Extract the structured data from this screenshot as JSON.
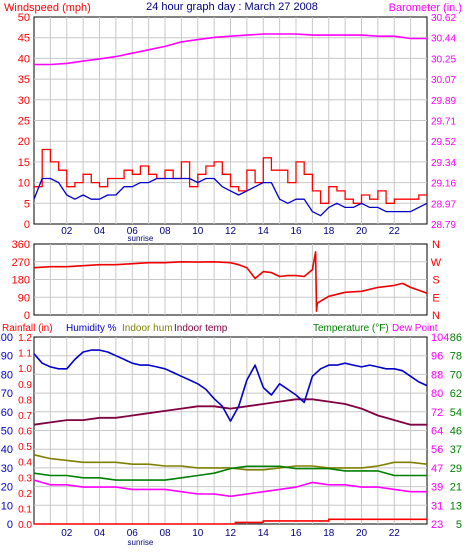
{
  "title": "24 hour graph day : March 27 2008",
  "panel1": {
    "left_label": "Windspeed (mph)",
    "right_label": "Barometer (in.)"
  },
  "panel2": {
    "compass_labels": [
      "N",
      "W",
      "S",
      "E",
      "N"
    ]
  },
  "panel3": {
    "labels": [
      "Rainfall (in)",
      "Humidity %",
      "Indoor hum",
      "Indoor temp",
      "Temperature (°F)",
      "Dew Point"
    ]
  },
  "x_ticks": [
    "02",
    "04",
    "06",
    "08",
    "10",
    "12",
    "14",
    "16",
    "18",
    "20",
    "22"
  ],
  "sunrise_label": "sunrise",
  "colors": {
    "wind": "#ff0000",
    "wind_avg": "#0000cc",
    "baro": "#ff00ff",
    "dir": "#ee0000",
    "humidity": "#0000cc",
    "indoor_hum": "#808000",
    "indoor_temp": "#800040",
    "temperature": "#008000",
    "dewpoint": "#ff00ff",
    "rain": "#ff0000",
    "grid": "#c8c8c8"
  },
  "chart_data": [
    {
      "type": "line",
      "x_unit": "hour",
      "xlim": [
        0,
        24
      ],
      "y_left": {
        "label": "Windspeed (mph)",
        "ticks": [
          0,
          5,
          10,
          15,
          20,
          25,
          30,
          35,
          40,
          45,
          50
        ],
        "ylim": [
          0,
          50
        ]
      },
      "y_right": {
        "label": "Barometer (in.)",
        "ticks": [
          "28.79",
          "28.97",
          "29.16",
          "29.34",
          "29.52",
          "29.71",
          "29.89",
          "30.07",
          "30.25",
          "30.44",
          "30.62"
        ],
        "ylim": [
          28.79,
          30.62
        ]
      },
      "series": [
        {
          "name": "Windspeed (mph)",
          "axis": "left",
          "style": "gust",
          "x": [
            0,
            0.5,
            1,
            1.5,
            2,
            2.5,
            3,
            3.5,
            4,
            4.5,
            5,
            5.5,
            6,
            6.5,
            7,
            7.5,
            8,
            8.5,
            9,
            9.5,
            10,
            10.5,
            11,
            11.5,
            12,
            12.5,
            13,
            13.5,
            14,
            14.5,
            15,
            15.5,
            16,
            16.5,
            17,
            17.5,
            18,
            18.5,
            19,
            19.5,
            20,
            20.5,
            21,
            21.5,
            22,
            22.5,
            23,
            23.5,
            24
          ],
          "y": [
            9,
            18,
            15,
            13,
            9,
            10,
            12,
            10,
            9,
            11,
            11,
            13,
            12,
            14,
            12,
            11,
            13,
            11,
            15,
            9,
            12,
            14,
            15,
            12,
            9,
            8,
            13,
            10,
            16,
            13,
            13,
            10,
            15,
            12,
            8,
            5,
            9,
            8,
            6,
            5,
            7,
            6,
            8,
            5,
            6,
            6,
            6,
            7,
            7
          ]
        },
        {
          "name": "Windspeed (avg)",
          "axis": "left",
          "style": "avg",
          "x": [
            0,
            0.5,
            1,
            1.5,
            2,
            2.5,
            3,
            3.5,
            4,
            4.5,
            5,
            5.5,
            6,
            6.5,
            7,
            7.5,
            8,
            8.5,
            9,
            9.5,
            10,
            10.5,
            11,
            11.5,
            12,
            12.5,
            13,
            13.5,
            14,
            14.5,
            15,
            15.5,
            16,
            16.5,
            17,
            17.5,
            18,
            18.5,
            19,
            19.5,
            20,
            20.5,
            21,
            21.5,
            22,
            22.5,
            23,
            23.5,
            24
          ],
          "y": [
            6,
            11,
            11,
            10,
            7,
            6,
            7,
            6,
            6,
            7,
            7,
            9,
            9,
            10,
            10,
            11,
            11,
            11,
            11,
            11,
            10,
            11,
            11,
            9,
            8,
            7,
            8,
            9,
            10,
            10,
            6,
            5,
            6,
            6,
            3,
            2,
            4,
            5,
            4,
            4,
            5,
            4,
            4,
            3,
            3,
            3,
            3,
            4,
            5
          ]
        },
        {
          "name": "Barometer (in.)",
          "axis": "right",
          "x": [
            0,
            1,
            2,
            3,
            4,
            5,
            6,
            7,
            8,
            9,
            10,
            11,
            12,
            13,
            14,
            15,
            16,
            17,
            18,
            19,
            20,
            21,
            22,
            23,
            24
          ],
          "y": [
            30.2,
            30.2,
            30.21,
            30.23,
            30.25,
            30.27,
            30.3,
            30.33,
            30.36,
            30.4,
            30.42,
            30.44,
            30.45,
            30.46,
            30.47,
            30.47,
            30.47,
            30.46,
            30.46,
            30.46,
            30.46,
            30.45,
            30.45,
            30.43,
            30.43
          ]
        }
      ]
    },
    {
      "type": "line",
      "x_unit": "hour",
      "xlim": [
        0,
        24
      ],
      "y_left": {
        "ticks": [
          0,
          90,
          180,
          270,
          360
        ],
        "ylim": [
          0,
          360
        ]
      },
      "y_right": {
        "ticks": [
          "N",
          "E",
          "S",
          "W",
          "N"
        ]
      },
      "series": [
        {
          "name": "Wind direction",
          "x": [
            0,
            1,
            2,
            3,
            4,
            5,
            6,
            7,
            8,
            9,
            10,
            11,
            12,
            12.5,
            13,
            13.5,
            14,
            14.5,
            15,
            15.5,
            16,
            16.5,
            17,
            17.2,
            17.25,
            17.3,
            17.6,
            18,
            19,
            20,
            21,
            22,
            22.5,
            23,
            23.5,
            24
          ],
          "y": [
            240,
            245,
            245,
            250,
            255,
            255,
            260,
            265,
            265,
            270,
            268,
            270,
            265,
            255,
            240,
            185,
            220,
            215,
            195,
            200,
            200,
            195,
            230,
            320,
            20,
            60,
            75,
            95,
            115,
            120,
            140,
            150,
            160,
            140,
            125,
            110
          ]
        }
      ]
    },
    {
      "type": "line",
      "x_unit": "hour",
      "xlim": [
        0,
        24
      ],
      "y_left_inner": {
        "label": "Rainfall (in)",
        "ticks": [
          "0.0",
          "0.1",
          "0.2",
          "0.3",
          "0.4",
          "0.5",
          "0.6",
          "0.7",
          "0.8",
          "0.9",
          "1.0",
          "1.1",
          "1.2"
        ],
        "ylim": [
          0,
          1.2
        ]
      },
      "y_left_outer": {
        "label": "Humidity %",
        "ticks": [
          0,
          10,
          20,
          30,
          40,
          50,
          60,
          70,
          80,
          90,
          100
        ],
        "ylim": [
          0,
          100
        ]
      },
      "y_right_inner": {
        "label": "Temperature (°F)",
        "ticks": [
          23,
          31,
          39,
          47,
          56,
          64,
          72,
          80,
          88,
          96,
          104
        ],
        "ylim": [
          23,
          104
        ]
      },
      "y_right_outer": {
        "ticks": [
          5,
          13,
          21,
          29,
          37,
          46,
          54,
          62,
          70,
          78,
          86
        ],
        "ylim": [
          5,
          86
        ]
      },
      "series": [
        {
          "name": "Humidity %",
          "axis": "humidity",
          "x": [
            0,
            0.5,
            1,
            1.5,
            2,
            2.5,
            3,
            3.5,
            4,
            4.5,
            5,
            5.5,
            6,
            6.5,
            7,
            7.5,
            8,
            8.5,
            9,
            9.5,
            10,
            10.5,
            11,
            11.5,
            12,
            12.5,
            13,
            13.5,
            14,
            14.5,
            15,
            15.5,
            16,
            16.5,
            17,
            17.5,
            18,
            18.5,
            19,
            19.5,
            20,
            20.5,
            21,
            21.5,
            22,
            22.5,
            23,
            23.5,
            24
          ],
          "y": [
            91,
            86,
            84,
            83,
            83,
            88,
            92,
            93,
            93,
            92,
            90,
            88,
            86,
            85,
            85,
            84,
            83,
            81,
            79,
            77,
            75,
            72,
            67,
            63,
            55,
            63,
            77,
            85,
            73,
            69,
            75,
            72,
            69,
            65,
            79,
            83,
            85,
            85,
            86,
            85,
            84,
            85,
            84,
            83,
            83,
            82,
            79,
            76,
            74
          ]
        },
        {
          "name": "Indoor hum",
          "axis": "humidity",
          "x": [
            0,
            1,
            2,
            3,
            4,
            5,
            6,
            7,
            8,
            9,
            10,
            11,
            12,
            13,
            14,
            15,
            16,
            17,
            18,
            19,
            20,
            21,
            22,
            23,
            24
          ],
          "y": [
            37,
            35,
            34,
            33,
            33,
            33,
            32,
            32,
            31,
            31,
            30,
            30,
            30,
            29,
            29,
            30,
            31,
            31,
            30,
            30,
            30,
            31,
            33,
            33,
            32
          ]
        },
        {
          "name": "Indoor temp",
          "axis": "temperature",
          "x": [
            0,
            1,
            2,
            3,
            4,
            5,
            6,
            7,
            8,
            9,
            10,
            11,
            12,
            13,
            14,
            15,
            16,
            17,
            18,
            19,
            20,
            21,
            22,
            23,
            24
          ],
          "y": [
            66,
            67,
            68,
            68,
            69,
            69,
            70,
            71,
            72,
            73,
            74,
            74,
            73,
            74,
            75,
            76,
            77,
            77,
            76,
            75,
            73,
            70,
            68,
            66,
            66
          ]
        },
        {
          "name": "Temperature (°F)",
          "axis": "temperature",
          "x": [
            0,
            1,
            2,
            3,
            4,
            5,
            6,
            7,
            8,
            9,
            10,
            11,
            12,
            13,
            14,
            15,
            16,
            17,
            18,
            19,
            20,
            21,
            22,
            23,
            24
          ],
          "y": [
            45,
            44,
            44,
            43,
            43,
            42,
            42,
            42,
            42,
            43,
            44,
            45,
            47,
            48,
            48,
            48,
            47,
            47,
            47,
            46,
            46,
            46,
            44,
            44,
            44
          ]
        },
        {
          "name": "Dew Point",
          "axis": "temperature",
          "x": [
            0,
            1,
            2,
            3,
            4,
            5,
            6,
            7,
            8,
            9,
            10,
            11,
            12,
            13,
            14,
            15,
            16,
            17,
            18,
            19,
            20,
            21,
            22,
            23,
            24
          ],
          "y": [
            42,
            40,
            40,
            39,
            39,
            39,
            38,
            38,
            38,
            37,
            36,
            36,
            35,
            36,
            37,
            38,
            39,
            41,
            40,
            40,
            39,
            39,
            38,
            37,
            37
          ]
        },
        {
          "name": "Rainfall (in)",
          "axis": "rain",
          "x": [
            0,
            12,
            12.3,
            14,
            16,
            18,
            20,
            22,
            24
          ],
          "y": [
            0.0,
            0.0,
            0.01,
            0.02,
            0.02,
            0.03,
            0.03,
            0.03,
            0.03
          ]
        }
      ]
    }
  ]
}
